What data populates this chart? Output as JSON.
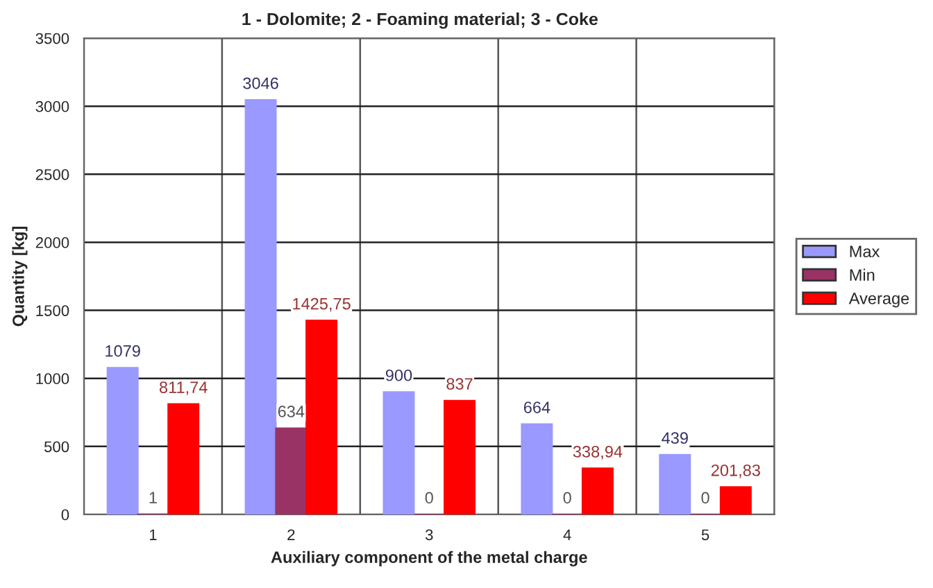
{
  "chart_data": {
    "type": "bar",
    "subtitle": "1 - Dolomite; 2 - Foaming material; 3 - Coke",
    "xlabel": "Auxiliary component of the metal charge",
    "ylabel": "Quantity [kg]",
    "categories": [
      "1",
      "2",
      "3",
      "4",
      "5"
    ],
    "series": [
      {
        "name": "Max",
        "color": "#9999ff",
        "values": [
          1079,
          3046,
          900,
          664,
          439
        ],
        "value_labels": [
          "1079",
          "3046",
          "900",
          "664",
          "439"
        ]
      },
      {
        "name": "Min",
        "color": "#993366",
        "values": [
          1,
          634,
          0,
          0,
          0
        ],
        "value_labels": [
          "1",
          "634",
          "0",
          "0",
          "0"
        ]
      },
      {
        "name": "Average",
        "color": "#ff0000",
        "values": [
          811.74,
          1425.75,
          837,
          338.94,
          201.83
        ],
        "value_labels": [
          "811,74",
          "1425,75",
          "837",
          "338,94",
          "201,83"
        ]
      }
    ],
    "ylim": [
      0,
      3500
    ],
    "yticks": [
      0,
      500,
      1000,
      1500,
      2000,
      2500,
      3000,
      3500
    ],
    "grid": true,
    "legend": "right"
  }
}
